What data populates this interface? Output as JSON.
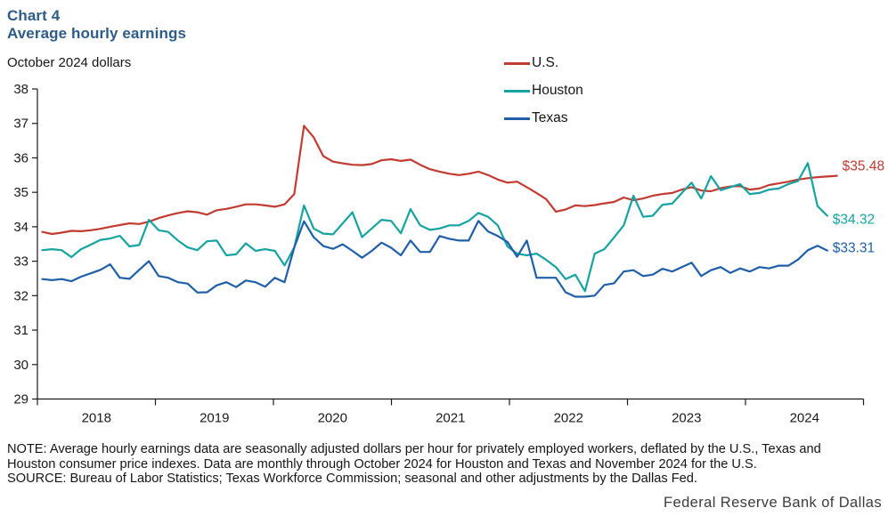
{
  "header": {
    "chart_number": "Chart 4",
    "title": "Average hourly earnings",
    "units": "October 2024 dollars"
  },
  "footer": {
    "brand": "Federal Reserve Bank of Dallas"
  },
  "notes": [
    "NOTE: Average hourly earnings data are seasonally adjusted dollars per hour for privately employed workers, deflated by the U.S., Texas and",
    "Houston consumer price indexes. Data are monthly through October 2024 for Houston and Texas and November 2024 for the U.S.",
    "SOURCE: Bureau of Labor Statistics; Texas Workforce Commission; seasonal and other adjustments by the Dallas Fed."
  ],
  "colors": {
    "us": "#c23b31",
    "houston": "#15a3a1",
    "texas": "#1e5fa8",
    "title_navy": "#2e5c87",
    "axis": "#1a1a1a"
  },
  "chart_data": {
    "type": "line",
    "title": "Average hourly earnings",
    "subtitle": "October 2024 dollars",
    "x_start_month": "2018-01",
    "ylim": [
      29,
      38
    ],
    "yticks": [
      38,
      37,
      36,
      35,
      34,
      33,
      32,
      31,
      30,
      29
    ],
    "xticks_years": [
      "2018",
      "2019",
      "2020",
      "2021",
      "2022",
      "2023",
      "2024"
    ],
    "grid": false,
    "legend_position": "top-right",
    "series": [
      {
        "name": "U.S.",
        "color": "#c23b31",
        "end_label": "$35.48",
        "last_month": "2024-11",
        "values": [
          33.85,
          33.79,
          33.83,
          33.88,
          33.87,
          33.9,
          33.94,
          34.0,
          34.05,
          34.1,
          34.08,
          34.15,
          34.25,
          34.33,
          34.4,
          34.45,
          34.42,
          34.35,
          34.48,
          34.52,
          34.58,
          34.65,
          34.65,
          34.62,
          34.58,
          34.65,
          34.95,
          36.93,
          36.6,
          36.05,
          35.89,
          35.84,
          35.8,
          35.79,
          35.82,
          35.93,
          35.96,
          35.91,
          35.95,
          35.8,
          35.67,
          35.6,
          35.54,
          35.5,
          35.54,
          35.6,
          35.5,
          35.37,
          35.28,
          35.31,
          35.15,
          34.98,
          34.8,
          34.44,
          34.5,
          34.62,
          34.6,
          34.63,
          34.68,
          34.72,
          34.85,
          34.77,
          34.82,
          34.9,
          34.95,
          34.98,
          35.08,
          35.15,
          35.05,
          35.03,
          35.12,
          35.17,
          35.18,
          35.08,
          35.11,
          35.21,
          35.26,
          35.31,
          35.37,
          35.41,
          35.44,
          35.46,
          35.48
        ]
      },
      {
        "name": "Houston",
        "color": "#15a3a1",
        "end_label": "$34.32",
        "last_month": "2024-10",
        "values": [
          33.32,
          33.35,
          33.32,
          33.12,
          33.35,
          33.48,
          33.62,
          33.66,
          33.74,
          33.43,
          33.47,
          34.2,
          33.9,
          33.85,
          33.6,
          33.4,
          33.32,
          33.58,
          33.6,
          33.17,
          33.2,
          33.52,
          33.3,
          33.35,
          33.3,
          32.88,
          33.4,
          34.62,
          33.95,
          33.8,
          33.78,
          34.1,
          34.42,
          33.7,
          33.95,
          34.2,
          34.17,
          33.81,
          34.51,
          34.04,
          33.91,
          33.95,
          34.04,
          34.04,
          34.17,
          34.4,
          34.29,
          34.04,
          33.43,
          33.22,
          33.17,
          33.22,
          33.04,
          32.83,
          32.48,
          32.61,
          32.13,
          33.22,
          33.35,
          33.69,
          34.04,
          34.9,
          34.29,
          34.32,
          34.64,
          34.67,
          34.98,
          35.28,
          34.82,
          35.47,
          35.06,
          35.15,
          35.24,
          34.95,
          34.98,
          35.08,
          35.11,
          35.24,
          35.33,
          35.85,
          34.6,
          34.32
        ]
      },
      {
        "name": "Texas",
        "color": "#1e5fa8",
        "end_label": "$33.31",
        "last_month": "2024-10",
        "values": [
          32.48,
          32.45,
          32.48,
          32.42,
          32.55,
          32.65,
          32.75,
          32.91,
          32.52,
          32.49,
          32.75,
          33.0,
          32.57,
          32.52,
          32.39,
          32.35,
          32.09,
          32.1,
          32.3,
          32.39,
          32.25,
          32.44,
          32.39,
          32.26,
          32.52,
          32.39,
          33.4,
          34.16,
          33.7,
          33.44,
          33.36,
          33.49,
          33.3,
          33.1,
          33.3,
          33.54,
          33.39,
          33.17,
          33.6,
          33.27,
          33.27,
          33.73,
          33.65,
          33.6,
          33.6,
          34.17,
          33.86,
          33.73,
          33.56,
          33.13,
          33.6,
          32.52,
          32.52,
          32.52,
          32.1,
          31.97,
          31.97,
          32.0,
          32.31,
          32.36,
          32.7,
          32.74,
          32.57,
          32.61,
          32.78,
          32.7,
          32.83,
          32.96,
          32.57,
          32.74,
          32.83,
          32.66,
          32.79,
          32.7,
          32.83,
          32.79,
          32.87,
          32.87,
          33.05,
          33.32,
          33.45,
          33.31
        ]
      }
    ]
  }
}
